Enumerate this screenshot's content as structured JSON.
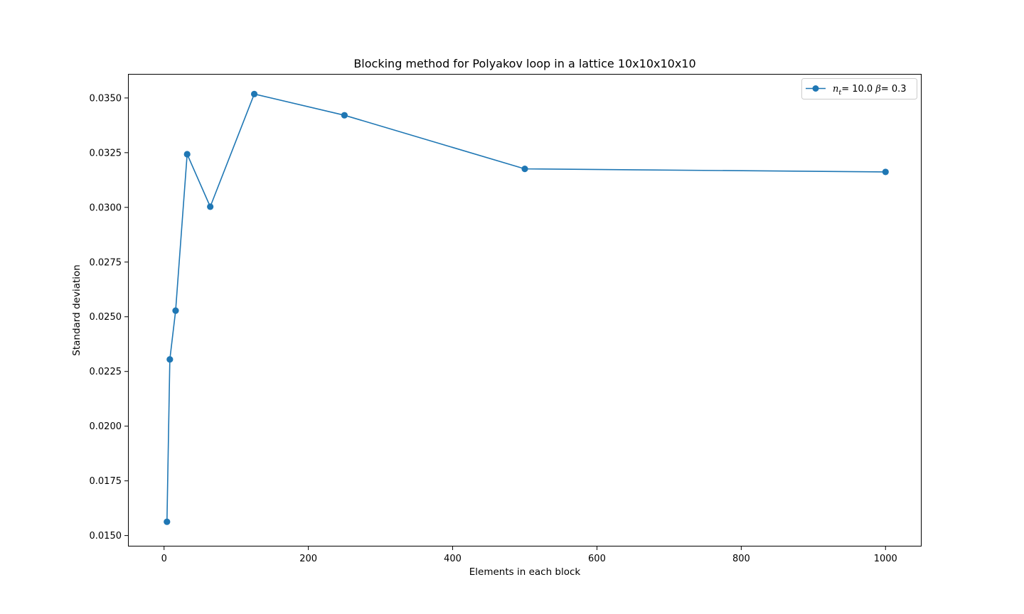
{
  "chart_data": {
    "type": "line",
    "title": "Blocking method for Polyakov loop in a lattice 10x10x10x10",
    "xlabel": "Elements in each block",
    "ylabel": "Standard deviation",
    "xlim": [
      -50,
      1050
    ],
    "ylim": [
      0.0145,
      0.0361
    ],
    "xticks": [
      0,
      200,
      400,
      600,
      800,
      1000
    ],
    "xtick_labels": [
      "0",
      "200",
      "400",
      "600",
      "800",
      "1000"
    ],
    "yticks": [
      0.015,
      0.0175,
      0.02,
      0.0225,
      0.025,
      0.0275,
      0.03,
      0.0325,
      0.035
    ],
    "ytick_labels": [
      "0.0150",
      "0.0175",
      "0.0200",
      "0.0225",
      "0.0250",
      "0.0275",
      "0.0300",
      "0.0325",
      "0.0350"
    ],
    "grid": false,
    "legend_position": "top-right",
    "series": [
      {
        "name": "n_t= 10.0 β= 0.3",
        "color": "#1f77b4",
        "marker": "circle",
        "x": [
          4,
          8,
          16,
          32,
          64,
          125,
          250,
          500,
          1000
        ],
        "y": [
          0.01563,
          0.02305,
          0.02528,
          0.03243,
          0.03003,
          0.03518,
          0.03421,
          0.03176,
          0.03162
        ]
      }
    ],
    "legend": {
      "var": "n",
      "sub": "t",
      "mid": "= 10.0 ",
      "beta": "β",
      "tail": "= 0.3"
    }
  }
}
